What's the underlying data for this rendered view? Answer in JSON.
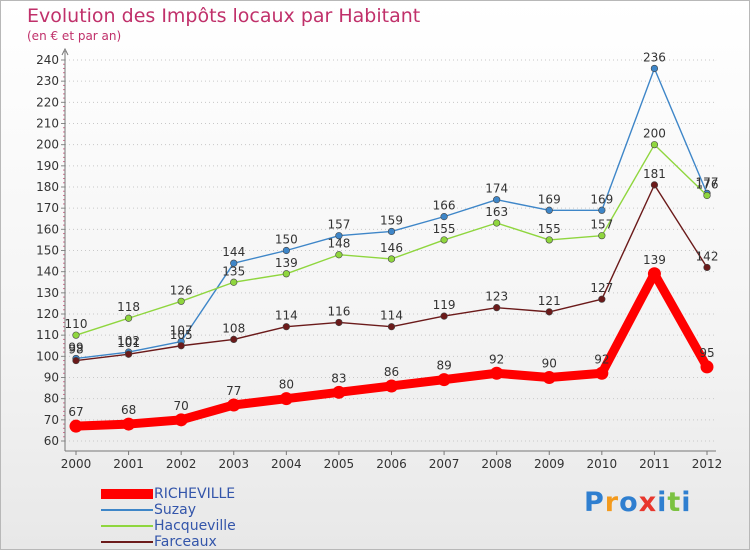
{
  "header": {
    "title": "Evolution des Impôts locaux par Habitant",
    "subtitle": "(en € et par an)"
  },
  "chart_data": {
    "type": "line",
    "title": "Evolution des Impôts locaux par Habitant",
    "subtitle": "(en € et par an)",
    "xlabel": "",
    "ylabel": "",
    "categories": [
      "2000",
      "2001",
      "2002",
      "2003",
      "2004",
      "2005",
      "2006",
      "2007",
      "2008",
      "2009",
      "2010",
      "2011",
      "2012"
    ],
    "ylim": [
      60,
      240
    ],
    "yticks": [
      60,
      70,
      80,
      90,
      100,
      110,
      120,
      130,
      140,
      150,
      160,
      170,
      180,
      190,
      200,
      210,
      220,
      230,
      240
    ],
    "grid": "horizontal dotted",
    "legend_position": "bottom-left",
    "series": [
      {
        "name": "RICHEVILLE",
        "color": "#ff0000",
        "values": [
          67,
          68,
          70,
          77,
          80,
          83,
          86,
          89,
          92,
          90,
          92,
          139,
          95
        ]
      },
      {
        "name": "Suzay",
        "color": "#3e86c8",
        "values": [
          99,
          102,
          107,
          144,
          150,
          157,
          159,
          166,
          174,
          169,
          169,
          236,
          177
        ]
      },
      {
        "name": "Hacqueville",
        "color": "#8fd63e",
        "values": [
          110,
          118,
          126,
          135,
          139,
          148,
          146,
          155,
          163,
          155,
          157,
          200,
          176
        ]
      },
      {
        "name": "Farceaux",
        "color": "#6b1a1a",
        "values": [
          98,
          101,
          105,
          108,
          114,
          116,
          114,
          119,
          123,
          121,
          127,
          181,
          142
        ]
      }
    ]
  },
  "legend": [
    {
      "label": "RICHEVILLE"
    },
    {
      "label": "Suzay"
    },
    {
      "label": "Hacqueville"
    },
    {
      "label": "Farceaux"
    }
  ],
  "logo": {
    "letters": [
      "P",
      "r",
      "o",
      "x",
      "i",
      "t",
      "i"
    ],
    "colors": [
      "#2f7fd0",
      "#f39a1d",
      "#2f7fd0",
      "#e8372d",
      "#2f7fd0",
      "#7cc242",
      "#2f7fd0"
    ]
  }
}
